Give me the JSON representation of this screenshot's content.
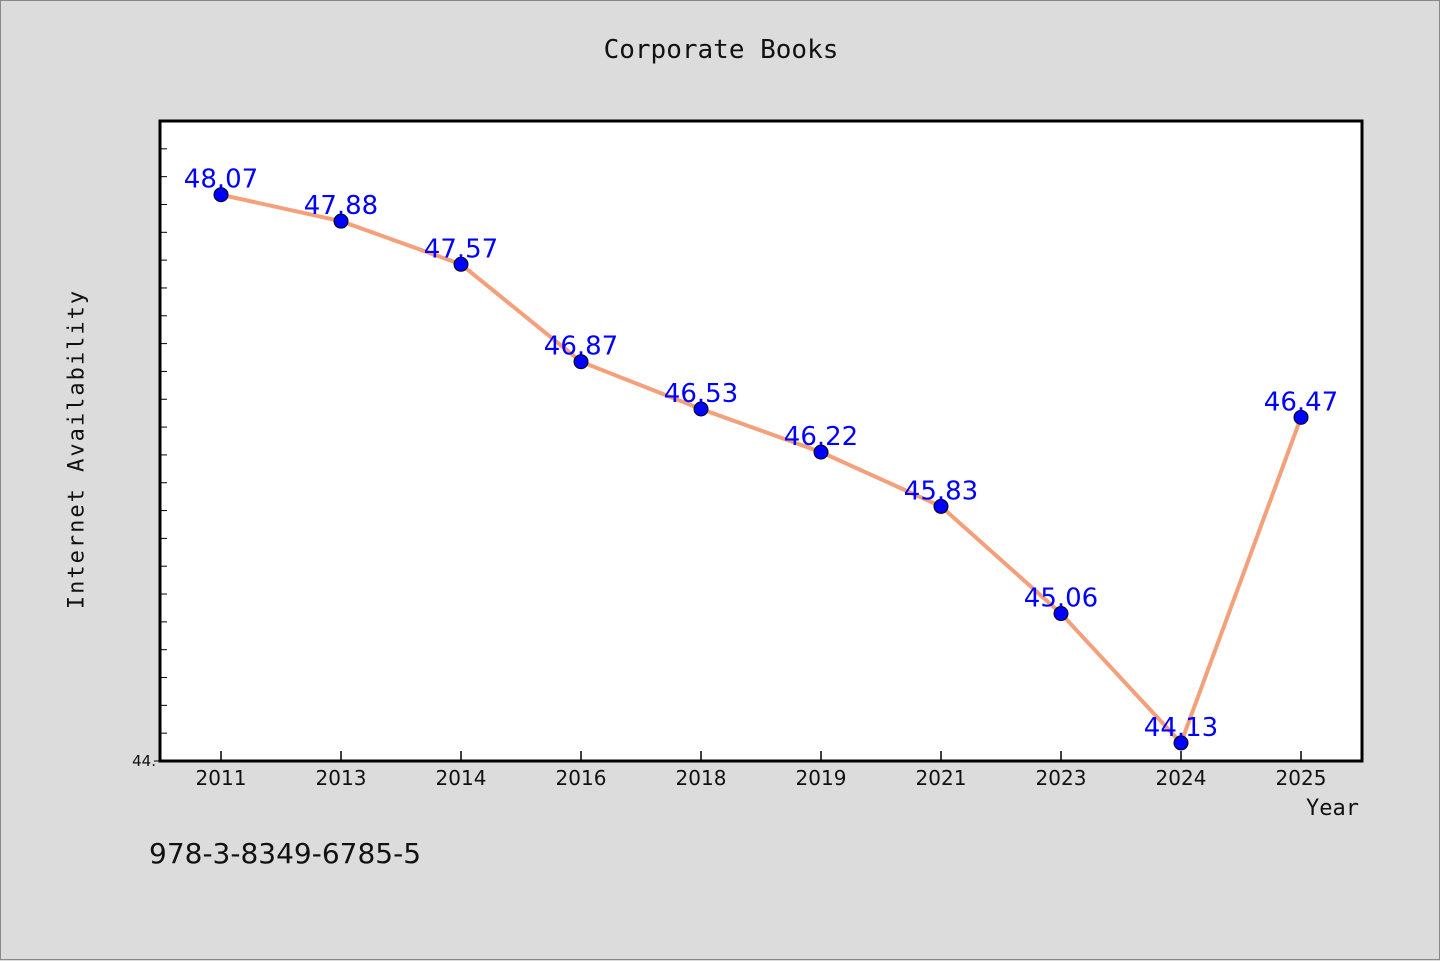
{
  "chart_data": {
    "type": "line",
    "title": "Corporate Books",
    "xlabel": "Year",
    "ylabel": "Internet Availability",
    "categories": [
      "2011",
      "2013",
      "2014",
      "2016",
      "2018",
      "2019",
      "2021",
      "2023",
      "2024",
      "2025"
    ],
    "series": [
      {
        "values": [
          48.07,
          47.88,
          47.57,
          46.87,
          46.53,
          46.22,
          45.83,
          45.06,
          44.13,
          46.47
        ]
      }
    ],
    "data_labels": [
      "48.07",
      "47.88",
      "47.57",
      "46.87",
      "46.53",
      "46.22",
      "45.83",
      "45.06",
      "44.13",
      "46.47"
    ],
    "ylim": [
      44.0,
      48.6
    ],
    "y_tick_labels": [
      {
        "value": 44.0,
        "label": "44."
      }
    ],
    "grid": false,
    "legend": "none",
    "line_color": "#f4a07a",
    "marker_color": "#0000ff",
    "label_color": "#0000ff"
  },
  "footer": {
    "code": "978-3-8349-6785-5"
  }
}
